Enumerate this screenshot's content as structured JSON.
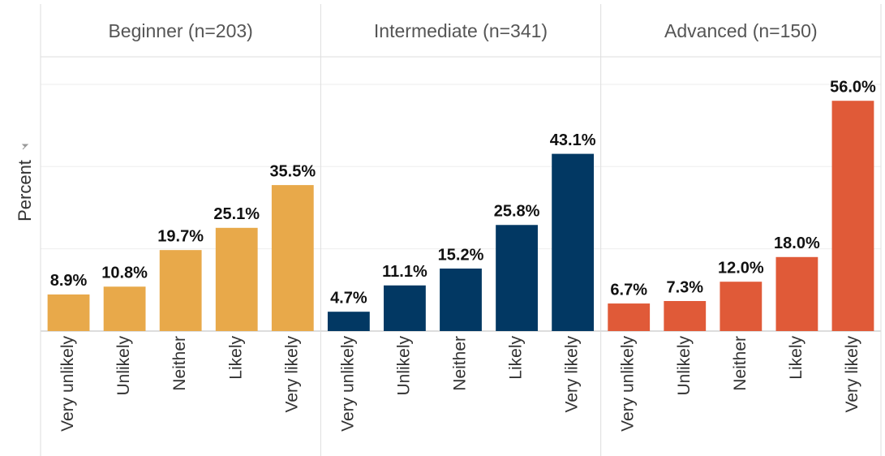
{
  "chart_data": {
    "type": "bar",
    "y_label": "Percent",
    "categories": [
      "Very unlikely",
      "Unlikely",
      "Neither",
      "Likely",
      "Very likely"
    ],
    "ylim": [
      0,
      66.7
    ],
    "yticks": [
      0,
      20,
      40,
      60
    ],
    "grid": true,
    "facets": [
      {
        "name": "Beginner (n=203)",
        "color": "#e8a94a",
        "values": [
          8.9,
          10.8,
          19.7,
          25.1,
          35.5
        ],
        "value_labels": [
          "8.9%",
          "10.8%",
          "19.7%",
          "25.1%",
          "35.5%"
        ]
      },
      {
        "name": "Intermediate (n=341)",
        "color": "#023863",
        "values": [
          4.7,
          11.1,
          15.2,
          25.8,
          43.1
        ],
        "value_labels": [
          "4.7%",
          "11.1%",
          "15.2%",
          "25.8%",
          "43.1%"
        ]
      },
      {
        "name": "Advanced (n=150)",
        "color": "#e05a38",
        "values": [
          6.7,
          7.3,
          12.0,
          18.0,
          56.0
        ],
        "value_labels": [
          "6.7%",
          "7.3%",
          "12.0%",
          "18.0%",
          "56.0%"
        ]
      }
    ]
  }
}
